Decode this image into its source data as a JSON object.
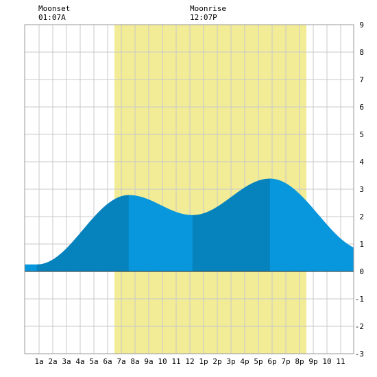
{
  "moon_events": [
    {
      "label": "Moonset",
      "time": "01:07A",
      "hour": 1.117
    },
    {
      "label": "Moonrise",
      "time": "12:07P",
      "hour": 12.117
    }
  ],
  "chart_data": {
    "type": "area",
    "title": "",
    "xlabel": "",
    "ylabel": "",
    "x_ticks": [
      {
        "hour": 1,
        "label": "1a"
      },
      {
        "hour": 2,
        "label": "2a"
      },
      {
        "hour": 3,
        "label": "3a"
      },
      {
        "hour": 4,
        "label": "4a"
      },
      {
        "hour": 5,
        "label": "5a"
      },
      {
        "hour": 6,
        "label": "6a"
      },
      {
        "hour": 7,
        "label": "7a"
      },
      {
        "hour": 8,
        "label": "8a"
      },
      {
        "hour": 9,
        "label": "9a"
      },
      {
        "hour": 10,
        "label": "10"
      },
      {
        "hour": 11,
        "label": "11"
      },
      {
        "hour": 12,
        "label": "12"
      },
      {
        "hour": 13,
        "label": "1p"
      },
      {
        "hour": 14,
        "label": "2p"
      },
      {
        "hour": 15,
        "label": "3p"
      },
      {
        "hour": 16,
        "label": "4p"
      },
      {
        "hour": 17,
        "label": "5p"
      },
      {
        "hour": 18,
        "label": "6p"
      },
      {
        "hour": 19,
        "label": "7p"
      },
      {
        "hour": 20,
        "label": "8p"
      },
      {
        "hour": 21,
        "label": "9p"
      },
      {
        "hour": 22,
        "label": "10"
      },
      {
        "hour": 23,
        "label": "11"
      }
    ],
    "xlim": [
      -0.05,
      23.95
    ],
    "ylim": [
      -3,
      9
    ],
    "y_ticks": [
      -3,
      -2,
      -1,
      0,
      1,
      2,
      3,
      4,
      5,
      6,
      7,
      8,
      9
    ],
    "grid": true,
    "daylight": {
      "start_hour": 6.5,
      "end_hour": 20.5
    },
    "tide_extremes": [
      {
        "type": "low",
        "hour": 0.85,
        "value": 0.25
      },
      {
        "type": "high",
        "hour": 7.55,
        "value": 2.78
      },
      {
        "type": "low",
        "hour": 12.2,
        "value": 2.05
      },
      {
        "type": "high",
        "hour": 17.85,
        "value": 3.38
      },
      {
        "type": "low",
        "hour": 24.9,
        "value": 0.75
      }
    ],
    "colors": {
      "daylight": "#f2ec96",
      "tide_light": "#0897dc",
      "tide_dark": "#0682bd",
      "grid": "#c8c8c8",
      "zero_line": "#333333"
    }
  }
}
